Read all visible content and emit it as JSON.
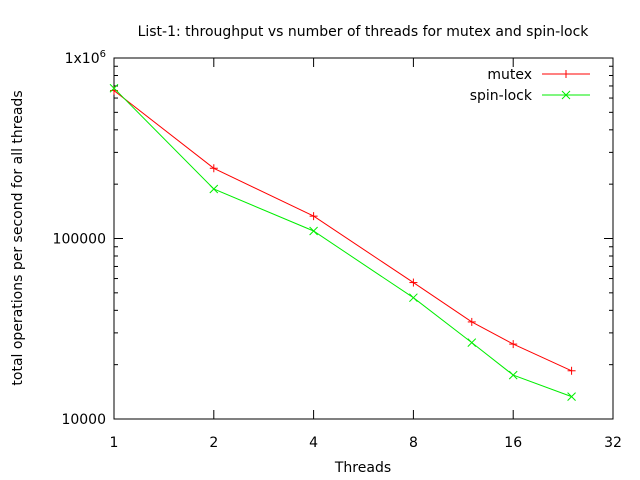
{
  "chart_data": {
    "type": "line",
    "title": "List-1: throughput vs number of threads for mutex and spin-lock",
    "xlabel": "Threads",
    "ylabel": "total operations per second for all threads",
    "x_scale": "log2",
    "y_scale": "log10",
    "xlim": [
      1,
      32
    ],
    "ylim": [
      10000,
      1000000
    ],
    "x_ticks": [
      "1",
      "2",
      "4",
      "8",
      "16",
      "32"
    ],
    "y_ticks": [
      "10000",
      "100000",
      "1x10^6"
    ],
    "grid": false,
    "legend_position": "top-right",
    "series": [
      {
        "name": "mutex",
        "color": "#ff0000",
        "marker": "plus",
        "points": [
          [
            1,
            660000
          ],
          [
            2,
            245000
          ],
          [
            4,
            133000
          ],
          [
            8,
            57000
          ],
          [
            12,
            34500
          ],
          [
            16,
            26000
          ],
          [
            24,
            18500
          ]
        ]
      },
      {
        "name": "spin-lock",
        "color": "#00ee00",
        "marker": "cross",
        "points": [
          [
            1,
            680000
          ],
          [
            2,
            188000
          ],
          [
            4,
            110000
          ],
          [
            8,
            47000
          ],
          [
            12,
            26500
          ],
          [
            16,
            17500
          ],
          [
            24,
            13300
          ]
        ]
      }
    ]
  }
}
